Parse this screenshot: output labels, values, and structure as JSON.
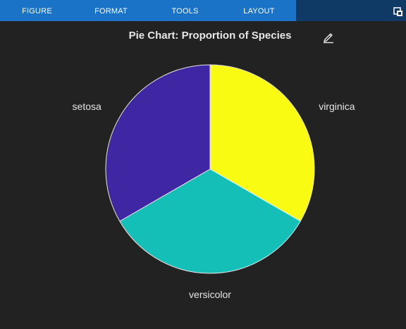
{
  "menu": {
    "tabs": [
      "FIGURE",
      "FORMAT",
      "TOOLS",
      "LAYOUT"
    ]
  },
  "icons": {
    "popout": "popout-window-icon",
    "edit": "edit-pen-icon"
  },
  "colors": {
    "menu_tabs_bg": "#1a73c6",
    "menu_bar_bg": "#0f3a66",
    "plot_bg": "#222222"
  },
  "chart_data": {
    "type": "pie",
    "title": "Pie Chart: Proportion of Species",
    "categories": [
      "virginica",
      "versicolor",
      "setosa"
    ],
    "values": [
      50,
      50,
      50
    ],
    "colors": [
      "#f9fb12",
      "#14bfb8",
      "#3f27a3"
    ],
    "start": "12 o'clock",
    "direction": "clockwise",
    "slice_border": "#e6e6e6",
    "legend": "none"
  }
}
